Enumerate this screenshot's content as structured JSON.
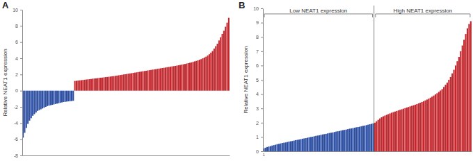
{
  "chart_data": [
    {
      "type": "bar",
      "title": "A",
      "y_label": "Relative NEAT1 expression",
      "categories": [
        null,
        null,
        null,
        null,
        null,
        null,
        null,
        null,
        null,
        null,
        null,
        null,
        null,
        null,
        null,
        null,
        null,
        null,
        null,
        null,
        null,
        null,
        null,
        null,
        null,
        null,
        null,
        null,
        null,
        null,
        null,
        null,
        null,
        null,
        null,
        null,
        null,
        null,
        null,
        null,
        null,
        null,
        null,
        null,
        null,
        null,
        null,
        null,
        null,
        null,
        null,
        null,
        null,
        null,
        null,
        null,
        null,
        null,
        null,
        null,
        null,
        null,
        null,
        null,
        null,
        null,
        null,
        null,
        null,
        null,
        null,
        null,
        null,
        null,
        null,
        null,
        null,
        null,
        null,
        null,
        null,
        null,
        null,
        null,
        null,
        null,
        null,
        null,
        null,
        null,
        null,
        null,
        null,
        null,
        null,
        null,
        null,
        null,
        null,
        null,
        null,
        null,
        null,
        null,
        null,
        null,
        null,
        null,
        null,
        null,
        null,
        null,
        null,
        null,
        null,
        null,
        null,
        null,
        null,
        null,
        null,
        null,
        null,
        null,
        null,
        null,
        null,
        null
      ],
      "values": [
        -5.8,
        -5.2,
        -4.6,
        -4.1,
        -3.7,
        -3.4,
        -3.1,
        -2.9,
        -2.7,
        -2.5,
        -2.4,
        -2.3,
        -2.2,
        -2.1,
        -2.0,
        -1.9,
        -1.85,
        -1.8,
        -1.75,
        -1.7,
        -1.65,
        -1.6,
        -1.55,
        -1.5,
        -1.45,
        -1.4,
        -1.38,
        -1.35,
        -1.32,
        -1.3,
        -1.28,
        -1.25,
        1.2,
        1.22,
        1.25,
        1.28,
        1.3,
        1.32,
        1.35,
        1.38,
        1.4,
        1.42,
        1.45,
        1.48,
        1.5,
        1.52,
        1.55,
        1.58,
        1.6,
        1.62,
        1.65,
        1.68,
        1.7,
        1.72,
        1.75,
        1.78,
        1.8,
        1.83,
        1.86,
        1.9,
        1.93,
        1.96,
        2.0,
        2.03,
        2.06,
        2.1,
        2.13,
        2.16,
        2.2,
        2.23,
        2.26,
        2.3,
        2.33,
        2.36,
        2.4,
        2.43,
        2.46,
        2.5,
        2.53,
        2.56,
        2.6,
        2.63,
        2.66,
        2.7,
        2.73,
        2.76,
        2.8,
        2.83,
        2.86,
        2.9,
        2.93,
        2.96,
        3.0,
        3.03,
        3.06,
        3.1,
        3.14,
        3.18,
        3.22,
        3.26,
        3.3,
        3.35,
        3.4,
        3.45,
        3.5,
        3.56,
        3.62,
        3.68,
        3.75,
        3.82,
        3.9,
        4.0,
        4.1,
        4.2,
        4.35,
        4.5,
        4.7,
        4.9,
        5.2,
        5.5,
        5.8,
        6.2,
        6.6,
        7.0,
        7.4,
        7.9,
        8.4,
        9.0
      ],
      "colors": [
        "#2b4ea3",
        "#2b4ea3",
        "#2b4ea3",
        "#2b4ea3",
        "#2b4ea3",
        "#2b4ea3",
        "#2b4ea3",
        "#2b4ea3",
        "#2b4ea3",
        "#2b4ea3",
        "#2b4ea3",
        "#2b4ea3",
        "#2b4ea3",
        "#2b4ea3",
        "#2b4ea3",
        "#2b4ea3",
        "#2b4ea3",
        "#2b4ea3",
        "#2b4ea3",
        "#2b4ea3",
        "#2b4ea3",
        "#2b4ea3",
        "#2b4ea3",
        "#2b4ea3",
        "#2b4ea3",
        "#2b4ea3",
        "#2b4ea3",
        "#2b4ea3",
        "#2b4ea3",
        "#2b4ea3",
        "#2b4ea3",
        "#2b4ea3",
        "#c1272d",
        "#c1272d",
        "#c1272d",
        "#c1272d",
        "#c1272d",
        "#c1272d",
        "#c1272d",
        "#c1272d",
        "#c1272d",
        "#c1272d",
        "#c1272d",
        "#c1272d",
        "#c1272d",
        "#c1272d",
        "#c1272d",
        "#c1272d",
        "#c1272d",
        "#c1272d",
        "#c1272d",
        "#c1272d",
        "#c1272d",
        "#c1272d",
        "#c1272d",
        "#c1272d",
        "#c1272d",
        "#c1272d",
        "#c1272d",
        "#c1272d",
        "#c1272d",
        "#c1272d",
        "#c1272d",
        "#c1272d",
        "#c1272d",
        "#c1272d",
        "#c1272d",
        "#c1272d",
        "#c1272d",
        "#c1272d",
        "#c1272d",
        "#c1272d",
        "#c1272d",
        "#c1272d",
        "#c1272d",
        "#c1272d",
        "#c1272d",
        "#c1272d",
        "#c1272d",
        "#c1272d",
        "#c1272d",
        "#c1272d",
        "#c1272d",
        "#c1272d",
        "#c1272d",
        "#c1272d",
        "#c1272d",
        "#c1272d",
        "#c1272d",
        "#c1272d",
        "#c1272d",
        "#c1272d",
        "#c1272d",
        "#c1272d",
        "#c1272d",
        "#c1272d",
        "#c1272d",
        "#c1272d",
        "#c1272d",
        "#c1272d",
        "#c1272d",
        "#c1272d",
        "#c1272d",
        "#c1272d",
        "#c1272d",
        "#c1272d",
        "#c1272d",
        "#c1272d",
        "#c1272d",
        "#c1272d",
        "#c1272d",
        "#c1272d",
        "#c1272d",
        "#c1272d",
        "#c1272d",
        "#c1272d",
        "#c1272d",
        "#c1272d",
        "#c1272d",
        "#c1272d",
        "#c1272d",
        "#c1272d",
        "#c1272d",
        "#c1272d",
        "#c1272d",
        "#c1272d",
        "#c1272d",
        "#c1272d"
      ],
      "ylim": [
        -8,
        10
      ],
      "yticks": [
        -8,
        -6,
        -4,
        -2,
        0,
        2,
        4,
        6,
        8,
        10
      ],
      "grid": false
    },
    {
      "type": "bar",
      "title": "B",
      "y_label": "Relative NEAT1 expression",
      "annotations": [
        "Low NEAT1 expression",
        "High NEAT1 expression"
      ],
      "categories": [
        "1",
        null,
        null,
        null,
        null,
        null,
        null,
        null,
        null,
        null,
        null,
        null,
        null,
        null,
        null,
        null,
        null,
        null,
        null,
        null,
        null,
        null,
        null,
        null,
        null,
        null,
        null,
        null,
        null,
        null,
        null,
        null,
        null,
        null,
        null,
        null,
        null,
        null,
        null,
        null,
        null,
        null,
        null,
        null,
        null,
        null,
        null,
        null,
        null,
        null,
        null,
        null,
        null,
        null,
        null,
        null,
        null,
        null,
        null,
        null,
        null,
        null,
        null,
        null,
        null,
        null,
        null,
        null,
        null,
        null,
        null,
        null,
        null,
        null,
        null,
        null,
        null,
        null,
        null,
        null,
        null,
        null,
        null,
        null,
        null,
        null,
        null,
        null,
        null,
        null,
        null,
        null,
        null,
        null,
        null,
        null,
        null,
        null,
        null,
        null,
        null,
        null,
        null,
        null,
        null,
        null,
        null,
        null,
        null,
        null,
        null,
        null,
        null,
        null,
        null,
        null,
        null,
        null,
        null,
        null,
        null,
        null,
        null,
        null
      ],
      "values": [
        0.2,
        0.25,
        0.3,
        0.33,
        0.36,
        0.4,
        0.43,
        0.46,
        0.5,
        0.52,
        0.55,
        0.58,
        0.6,
        0.62,
        0.65,
        0.68,
        0.7,
        0.72,
        0.75,
        0.78,
        0.8,
        0.82,
        0.85,
        0.88,
        0.9,
        0.92,
        0.95,
        0.98,
        1.0,
        1.02,
        1.05,
        1.08,
        1.1,
        1.12,
        1.15,
        1.18,
        1.2,
        1.22,
        1.25,
        1.28,
        1.3,
        1.32,
        1.35,
        1.38,
        1.4,
        1.42,
        1.45,
        1.48,
        1.5,
        1.52,
        1.55,
        1.58,
        1.6,
        1.62,
        1.65,
        1.68,
        1.7,
        1.72,
        1.75,
        1.78,
        1.8,
        1.83,
        1.86,
        1.89,
        1.92,
        1.95,
        2.0,
        2.1,
        2.2,
        2.3,
        2.38,
        2.45,
        2.5,
        2.55,
        2.6,
        2.65,
        2.7,
        2.74,
        2.78,
        2.82,
        2.86,
        2.9,
        2.94,
        2.98,
        3.02,
        3.06,
        3.1,
        3.14,
        3.18,
        3.22,
        3.26,
        3.3,
        3.35,
        3.4,
        3.45,
        3.5,
        3.56,
        3.62,
        3.68,
        3.75,
        3.82,
        3.9,
        3.98,
        4.06,
        4.15,
        4.25,
        4.35,
        4.5,
        4.65,
        4.8,
        5.0,
        5.2,
        5.45,
        5.7,
        6.0,
        6.3,
        6.6,
        7.0,
        7.4,
        7.8,
        8.2,
        8.6,
        8.9,
        9.1
      ],
      "colors": [
        "#2b4ea3",
        "#2b4ea3",
        "#2b4ea3",
        "#2b4ea3",
        "#2b4ea3",
        "#2b4ea3",
        "#2b4ea3",
        "#2b4ea3",
        "#2b4ea3",
        "#2b4ea3",
        "#2b4ea3",
        "#2b4ea3",
        "#2b4ea3",
        "#2b4ea3",
        "#2b4ea3",
        "#2b4ea3",
        "#2b4ea3",
        "#2b4ea3",
        "#2b4ea3",
        "#2b4ea3",
        "#2b4ea3",
        "#2b4ea3",
        "#2b4ea3",
        "#2b4ea3",
        "#2b4ea3",
        "#2b4ea3",
        "#2b4ea3",
        "#2b4ea3",
        "#2b4ea3",
        "#2b4ea3",
        "#2b4ea3",
        "#2b4ea3",
        "#2b4ea3",
        "#2b4ea3",
        "#2b4ea3",
        "#2b4ea3",
        "#2b4ea3",
        "#2b4ea3",
        "#2b4ea3",
        "#2b4ea3",
        "#2b4ea3",
        "#2b4ea3",
        "#2b4ea3",
        "#2b4ea3",
        "#2b4ea3",
        "#2b4ea3",
        "#2b4ea3",
        "#2b4ea3",
        "#2b4ea3",
        "#2b4ea3",
        "#2b4ea3",
        "#2b4ea3",
        "#2b4ea3",
        "#2b4ea3",
        "#2b4ea3",
        "#2b4ea3",
        "#2b4ea3",
        "#2b4ea3",
        "#2b4ea3",
        "#2b4ea3",
        "#2b4ea3",
        "#2b4ea3",
        "#2b4ea3",
        "#2b4ea3",
        "#2b4ea3",
        "#2b4ea3",
        "#c1272d",
        "#c1272d",
        "#c1272d",
        "#c1272d",
        "#c1272d",
        "#c1272d",
        "#c1272d",
        "#c1272d",
        "#c1272d",
        "#c1272d",
        "#c1272d",
        "#c1272d",
        "#c1272d",
        "#c1272d",
        "#c1272d",
        "#c1272d",
        "#c1272d",
        "#c1272d",
        "#c1272d",
        "#c1272d",
        "#c1272d",
        "#c1272d",
        "#c1272d",
        "#c1272d",
        "#c1272d",
        "#c1272d",
        "#c1272d",
        "#c1272d",
        "#c1272d",
        "#c1272d",
        "#c1272d",
        "#c1272d",
        "#c1272d",
        "#c1272d",
        "#c1272d",
        "#c1272d",
        "#c1272d",
        "#c1272d",
        "#c1272d",
        "#c1272d",
        "#c1272d",
        "#c1272d",
        "#c1272d",
        "#c1272d",
        "#c1272d",
        "#c1272d",
        "#c1272d",
        "#c1272d",
        "#c1272d",
        "#c1272d",
        "#c1272d",
        "#c1272d",
        "#c1272d",
        "#c1272d",
        "#c1272d",
        "#c1272d",
        "#c1272d",
        "#c1272d"
      ],
      "ylim": [
        0,
        10
      ],
      "yticks": [
        0,
        1,
        2,
        3,
        4,
        5,
        6,
        7,
        8,
        9,
        10
      ],
      "grid": false
    }
  ]
}
